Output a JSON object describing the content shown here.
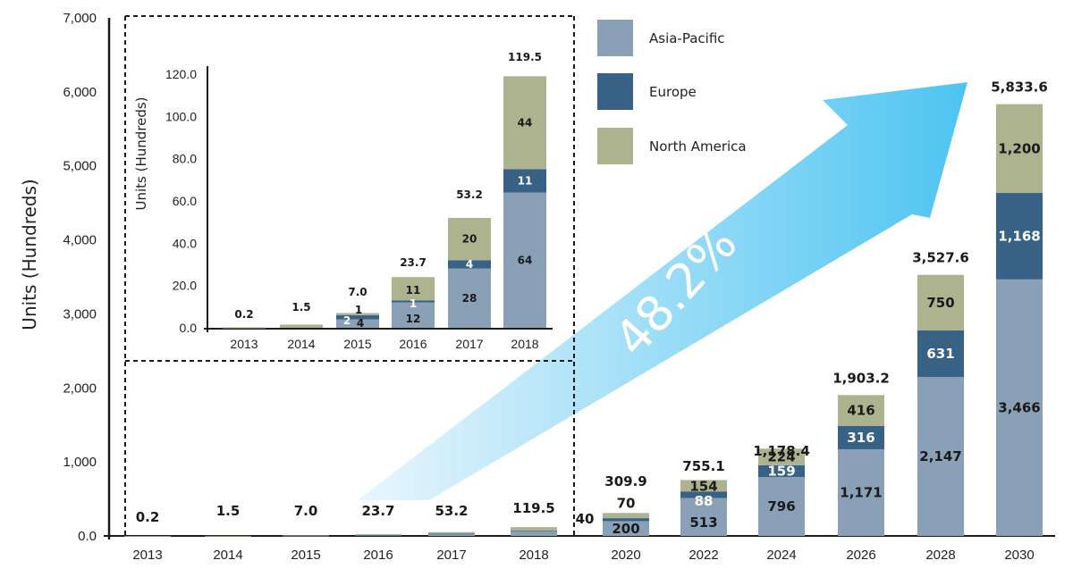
{
  "chart_data": [
    {
      "id": "main",
      "type": "bar",
      "stacked": true,
      "title": "",
      "xlabel": "",
      "ylabel": "Units (Hundreds)",
      "ylim": [
        0,
        7000
      ],
      "yticks": [
        "0.0",
        "1,000",
        "2,000",
        "3,000",
        "4,000",
        "5,000",
        "6,000",
        "7,000"
      ],
      "ytick_values": [
        0,
        1000,
        2000,
        3000,
        4000,
        5000,
        6000,
        7000
      ],
      "categories": [
        "2013",
        "2014",
        "2015",
        "2016",
        "2017",
        "2018",
        "2020",
        "2022",
        "2024",
        "2026",
        "2028",
        "2030"
      ],
      "series": [
        {
          "name": "Asia-Pacific",
          "values": [
            0,
            0,
            4,
            12,
            28,
            64,
            200,
            513,
            796,
            1171,
            2147,
            3466
          ],
          "labels": [
            "",
            "",
            "",
            "",
            "",
            "",
            "200",
            "513",
            "796",
            "1,171",
            "2,147",
            "3,466"
          ]
        },
        {
          "name": "Europe",
          "values": [
            0,
            0,
            2,
            1,
            4,
            11,
            40,
            88,
            159,
            316,
            631,
            1168
          ],
          "labels": [
            "",
            "",
            "",
            "",
            "",
            "",
            "40",
            "88",
            "159",
            "316",
            "631",
            "1,168"
          ]
        },
        {
          "name": "North America",
          "values": [
            0.2,
            1.5,
            1,
            11,
            20,
            44,
            70,
            154,
            224,
            416,
            750,
            1200
          ],
          "labels": [
            "",
            "",
            "",
            "",
            "",
            "",
            "70",
            "154",
            "224",
            "416",
            "750",
            "1,200"
          ]
        }
      ],
      "totals": [
        "0.2",
        "1.5",
        "7.0",
        "23.7",
        "53.2",
        "119.5",
        "309.9",
        "755.1",
        "1,178.4",
        "1,903.2",
        "3,527.6",
        "5,833.6"
      ],
      "grid": false,
      "legend": "top-right"
    },
    {
      "id": "inset",
      "type": "bar",
      "stacked": true,
      "title": "",
      "xlabel": "",
      "ylabel": "Units (Hundreds)",
      "ylim": [
        0,
        120
      ],
      "yticks": [
        "0.0",
        "20.0",
        "40.0",
        "60.0",
        "80.0",
        "100.0",
        "120.0"
      ],
      "ytick_values": [
        0,
        20,
        40,
        60,
        80,
        100,
        120
      ],
      "categories": [
        "2013",
        "2014",
        "2015",
        "2016",
        "2017",
        "2018"
      ],
      "series": [
        {
          "name": "Asia-Pacific",
          "values": [
            0,
            0,
            4,
            12,
            28,
            64
          ],
          "labels": [
            "",
            "",
            "4",
            "12",
            "28",
            "64"
          ]
        },
        {
          "name": "Europe",
          "values": [
            0,
            0,
            2,
            1,
            4,
            11
          ],
          "labels": [
            "",
            "",
            "2",
            "1",
            "4",
            "11"
          ]
        },
        {
          "name": "North America",
          "values": [
            0.2,
            1.5,
            1,
            11,
            20,
            44
          ],
          "labels": [
            "",
            "",
            "1",
            "11",
            "20",
            "44"
          ]
        }
      ],
      "totals": [
        "0.2",
        "1.5",
        "7.0",
        "23.7",
        "53.2",
        "119.5"
      ],
      "grid": false
    }
  ],
  "legend": {
    "items": [
      {
        "label": "Asia-Pacific",
        "color": "#8aa0b6"
      },
      {
        "label": "Europe",
        "color": "#386285"
      },
      {
        "label": "North America",
        "color": "#adb38f"
      }
    ]
  },
  "annotation": {
    "cagr_text": "48.2%",
    "arrow_color_start": "#eaf6fd",
    "arrow_color_end": "#4dc4f1"
  },
  "colors": {
    "asia_pacific": "#8aa0b6",
    "europe": "#386285",
    "north_america": "#adb38f",
    "label_dark": "#1a1a1a",
    "label_light": "#ffffff"
  }
}
